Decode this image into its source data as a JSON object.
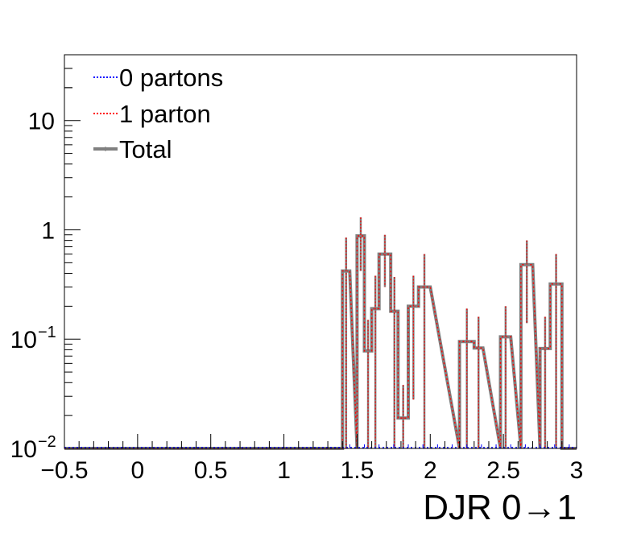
{
  "chart_data": {
    "type": "histogram",
    "xlabel": "DJR 0→1",
    "ylabel": "",
    "xlim": [
      -0.5,
      3.0
    ],
    "ylim": [
      0.01,
      40
    ],
    "yscale": "log",
    "grid": false,
    "legend_position": "top-left",
    "bin_width": 0.1,
    "x_ticks": [
      "−0.5",
      "0",
      "0.5",
      "1",
      "1.5",
      "2",
      "2.5",
      "3"
    ],
    "y_ticks": [
      {
        "value": 10,
        "label": "10"
      },
      {
        "value": 1,
        "label": "1"
      },
      {
        "value": 0.1,
        "base": "10",
        "exp": "−1"
      },
      {
        "value": 0.01,
        "base": "10",
        "exp": "−2"
      }
    ],
    "series": [
      {
        "name": "0 partons",
        "color": "#0000ff",
        "style": "dotted",
        "values": []
      },
      {
        "name": "1 parton",
        "color": "#ff0000",
        "style": "dotted",
        "values": "same as Total"
      },
      {
        "name": "Total",
        "color": "#808080",
        "style": "solid"
      }
    ],
    "bins": [
      {
        "x0": 1.4,
        "x1": 1.45,
        "y": 0.42,
        "err_hi": 0.85,
        "err_lo": 0.01
      },
      {
        "x0": 1.5,
        "x1": 1.55,
        "y": 0.88,
        "err_hi": 1.3,
        "err_lo": 0.42
      },
      {
        "x0": 1.55,
        "x1": 1.6,
        "y": 0.078,
        "err_hi": 0.15,
        "err_lo": 0.01
      },
      {
        "x0": 1.6,
        "x1": 1.65,
        "y": 0.19,
        "err_hi": 0.38,
        "err_lo": 0.01
      },
      {
        "x0": 1.65,
        "x1": 1.73,
        "y": 0.6,
        "err_hi": 0.9,
        "err_lo": 0.3
      },
      {
        "x0": 1.73,
        "x1": 1.78,
        "y": 0.18,
        "err_hi": 0.37,
        "err_lo": 0.01
      },
      {
        "x0": 1.78,
        "x1": 1.85,
        "y": 0.019,
        "err_hi": 0.038,
        "err_lo": 0.01
      },
      {
        "x0": 1.85,
        "x1": 1.92,
        "y": 0.2,
        "err_hi": 0.38,
        "err_lo": 0.028
      },
      {
        "x0": 1.92,
        "x1": 2.0,
        "y": 0.3,
        "err_hi": 0.6,
        "err_lo": 0.01
      },
      {
        "x0": 2.2,
        "x1": 2.3,
        "y": 0.095,
        "err_hi": 0.19,
        "err_lo": 0.01
      },
      {
        "x0": 2.3,
        "x1": 2.36,
        "y": 0.083,
        "err_hi": 0.16,
        "err_lo": 0.01
      },
      {
        "x0": 2.48,
        "x1": 2.55,
        "y": 0.105,
        "err_hi": 0.2,
        "err_lo": 0.01
      },
      {
        "x0": 2.62,
        "x1": 2.7,
        "y": 0.48,
        "err_hi": 0.8,
        "err_lo": 0.14
      },
      {
        "x0": 2.75,
        "x1": 2.82,
        "y": 0.082,
        "err_hi": 0.16,
        "err_lo": 0.01
      },
      {
        "x0": 2.82,
        "x1": 2.9,
        "y": 0.32,
        "err_hi": 0.6,
        "err_lo": 0.01
      }
    ]
  }
}
